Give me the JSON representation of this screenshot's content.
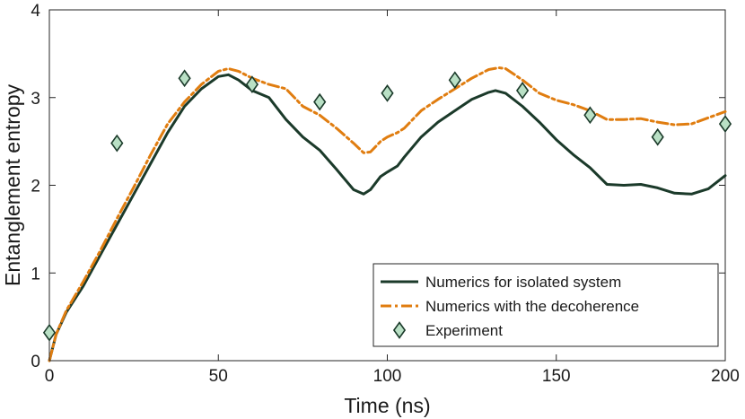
{
  "chart_data": {
    "type": "line",
    "xlabel": "Time (ns)",
    "ylabel": "Entanglement entropy",
    "xlim": [
      0,
      200
    ],
    "ylim": [
      0,
      4
    ],
    "xticks": [
      0,
      50,
      100,
      150,
      200
    ],
    "yticks": [
      0,
      1,
      2,
      3,
      4
    ],
    "legend_position": "bottom-right",
    "grid": false,
    "series": [
      {
        "name": "Numerics for isolated system",
        "style": "solid",
        "color": "#1b3a2a",
        "x": [
          0,
          2,
          5,
          10,
          15,
          20,
          25,
          30,
          35,
          40,
          45,
          50,
          53,
          56,
          60,
          65,
          70,
          75,
          80,
          85,
          90,
          93,
          95,
          98,
          100,
          103,
          105,
          110,
          115,
          120,
          125,
          130,
          132,
          135,
          140,
          145,
          150,
          155,
          160,
          165,
          170,
          175,
          180,
          185,
          190,
          195,
          200
        ],
        "y": [
          0,
          0.3,
          0.55,
          0.85,
          1.2,
          1.55,
          1.9,
          2.25,
          2.6,
          2.9,
          3.1,
          3.24,
          3.26,
          3.2,
          3.08,
          3.0,
          2.75,
          2.55,
          2.4,
          2.18,
          1.95,
          1.9,
          1.95,
          2.1,
          2.15,
          2.22,
          2.32,
          2.55,
          2.72,
          2.85,
          2.98,
          3.06,
          3.08,
          3.05,
          2.9,
          2.72,
          2.52,
          2.35,
          2.2,
          2.01,
          2.0,
          2.01,
          1.97,
          1.91,
          1.9,
          1.96,
          2.11
        ]
      },
      {
        "name": "Numerics with the decoherence",
        "style": "dashdot",
        "color": "#e07d10",
        "x": [
          0,
          2,
          5,
          10,
          15,
          20,
          25,
          30,
          35,
          40,
          45,
          50,
          53,
          56,
          60,
          65,
          70,
          75,
          80,
          85,
          90,
          93,
          95,
          98,
          100,
          103,
          105,
          110,
          115,
          120,
          125,
          130,
          133,
          135,
          140,
          145,
          150,
          155,
          160,
          165,
          170,
          175,
          180,
          185,
          190,
          195,
          200
        ],
        "y": [
          0,
          0.3,
          0.57,
          0.9,
          1.25,
          1.62,
          1.98,
          2.35,
          2.7,
          2.95,
          3.15,
          3.3,
          3.33,
          3.3,
          3.22,
          3.15,
          3.1,
          2.9,
          2.8,
          2.65,
          2.48,
          2.37,
          2.38,
          2.5,
          2.55,
          2.6,
          2.65,
          2.85,
          2.98,
          3.1,
          3.22,
          3.32,
          3.34,
          3.33,
          3.2,
          3.05,
          2.97,
          2.92,
          2.85,
          2.75,
          2.75,
          2.76,
          2.72,
          2.69,
          2.7,
          2.77,
          2.84
        ]
      },
      {
        "name": "Experiment",
        "style": "markers",
        "marker": "diamond",
        "color": "#b9e0c5",
        "edge_color": "#1b3a2a",
        "x": [
          0,
          20,
          40,
          60,
          80,
          100,
          120,
          140,
          160,
          180,
          200
        ],
        "y": [
          0.32,
          2.48,
          3.22,
          3.15,
          2.95,
          3.05,
          3.2,
          3.08,
          2.8,
          2.55,
          2.7
        ]
      }
    ]
  }
}
